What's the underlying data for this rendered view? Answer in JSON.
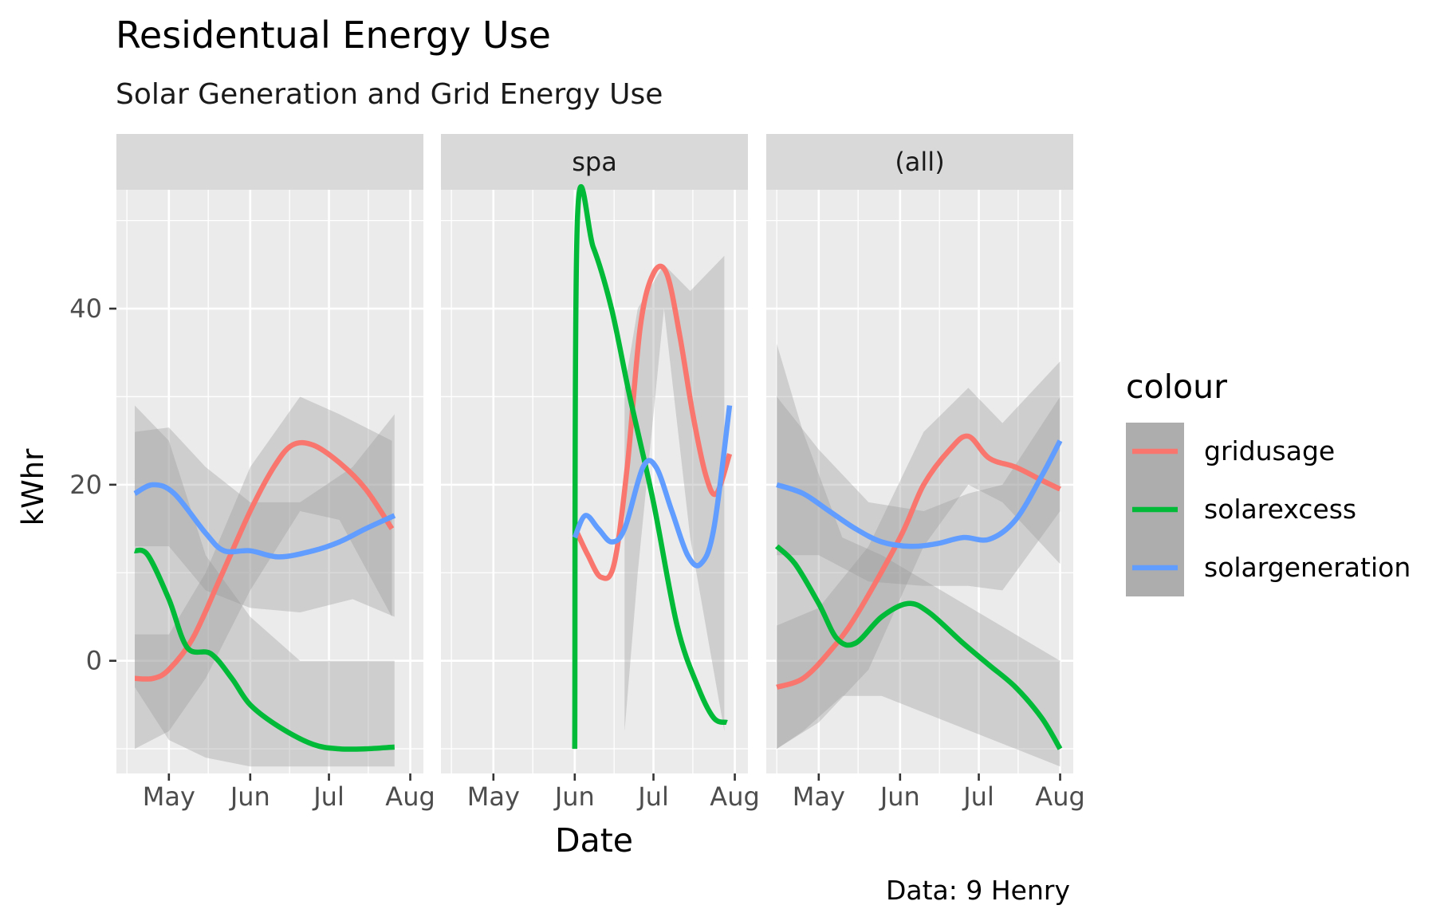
{
  "chart_data": {
    "type": "line",
    "title": "Residentual Energy Use",
    "subtitle": "Solar Generation and Grid Energy Use",
    "xlabel": "Date",
    "ylabel": "kWhr",
    "caption": "Data: 9 Henry",
    "x_ticks": [
      "May",
      "Jun",
      "Jul",
      "Aug"
    ],
    "y_ticks": [
      0,
      20,
      40
    ],
    "ylim": [
      -12.8,
      53.5
    ],
    "legend": {
      "title": "colour",
      "position": "right",
      "entries": [
        {
          "name": "gridusage",
          "color": "#F8766D"
        },
        {
          "name": "solarexcess",
          "color": "#00BA38"
        },
        {
          "name": "solargeneration",
          "color": "#619CFF"
        }
      ]
    },
    "panels": [
      {
        "strip": "",
        "series": [
          {
            "name": "gridusage",
            "color": "#F8766D",
            "points": [
              [
                "2019-04-18",
                -2
              ],
              [
                "2019-04-25",
                -2
              ],
              [
                "2019-05-01",
                -1
              ],
              [
                "2019-05-10",
                2.5
              ],
              [
                "2019-05-20",
                9
              ],
              [
                "2019-06-01",
                17
              ],
              [
                "2019-06-10",
                22
              ],
              [
                "2019-06-17",
                24.5
              ],
              [
                "2019-06-25",
                24.5
              ],
              [
                "2019-07-05",
                22.5
              ],
              [
                "2019-07-15",
                19.5
              ],
              [
                "2019-07-25",
                15
              ]
            ],
            "band": {
              "upper": [
                [
                  "2019-04-18",
                  3
                ],
                [
                  "2019-05-01",
                  3
                ],
                [
                  "2019-05-15",
                  10
                ],
                [
                  "2019-06-01",
                  22
                ],
                [
                  "2019-06-20",
                  30
                ],
                [
                  "2019-07-05",
                  28
                ],
                [
                  "2019-07-25",
                  25
                ]
              ],
              "lower": [
                [
                  "2019-04-18",
                  -10
                ],
                [
                  "2019-05-01",
                  -8
                ],
                [
                  "2019-05-15",
                  -2
                ],
                [
                  "2019-06-01",
                  8
                ],
                [
                  "2019-06-20",
                  17
                ],
                [
                  "2019-07-05",
                  16
                ],
                [
                  "2019-07-25",
                  5
                ]
              ]
            }
          },
          {
            "name": "solarexcess",
            "color": "#00BA38",
            "points": [
              [
                "2019-04-18",
                12.5
              ],
              [
                "2019-04-23",
                12
              ],
              [
                "2019-05-01",
                7
              ],
              [
                "2019-05-08",
                1.5
              ],
              [
                "2019-05-17",
                0.8
              ],
              [
                "2019-05-25",
                -2
              ],
              [
                "2019-06-01",
                -5
              ],
              [
                "2019-06-12",
                -7.5
              ],
              [
                "2019-06-25",
                -9.5
              ],
              [
                "2019-07-05",
                -10
              ],
              [
                "2019-07-15",
                -10
              ],
              [
                "2019-07-26",
                -9.8
              ]
            ],
            "band": {
              "upper": [
                [
                  "2019-04-18",
                  29
                ],
                [
                  "2019-05-01",
                  25
                ],
                [
                  "2019-05-15",
                  12
                ],
                [
                  "2019-06-01",
                  5
                ],
                [
                  "2019-06-20",
                  0
                ],
                [
                  "2019-07-26",
                  0
                ]
              ],
              "lower": [
                [
                  "2019-04-18",
                  -3
                ],
                [
                  "2019-05-01",
                  -9
                ],
                [
                  "2019-05-15",
                  -11
                ],
                [
                  "2019-06-01",
                  -12
                ],
                [
                  "2019-06-20",
                  -12
                ],
                [
                  "2019-07-26",
                  -12
                ]
              ]
            }
          },
          {
            "name": "solargeneration",
            "color": "#619CFF",
            "points": [
              [
                "2019-04-18",
                19
              ],
              [
                "2019-04-25",
                20
              ],
              [
                "2019-05-03",
                19
              ],
              [
                "2019-05-15",
                14.5
              ],
              [
                "2019-05-22",
                12.5
              ],
              [
                "2019-06-01",
                12.5
              ],
              [
                "2019-06-12",
                11.8
              ],
              [
                "2019-06-25",
                12.5
              ],
              [
                "2019-07-05",
                13.5
              ],
              [
                "2019-07-15",
                15
              ],
              [
                "2019-07-26",
                16.5
              ]
            ],
            "band": {
              "upper": [
                [
                  "2019-04-18",
                  26
                ],
                [
                  "2019-05-01",
                  26.5
                ],
                [
                  "2019-05-15",
                  22
                ],
                [
                  "2019-06-01",
                  18
                ],
                [
                  "2019-06-20",
                  18
                ],
                [
                  "2019-07-10",
                  22
                ],
                [
                  "2019-07-26",
                  28
                ]
              ],
              "lower": [
                [
                  "2019-04-18",
                  13
                ],
                [
                  "2019-05-01",
                  13
                ],
                [
                  "2019-05-15",
                  8
                ],
                [
                  "2019-06-01",
                  6
                ],
                [
                  "2019-06-20",
                  5.5
                ],
                [
                  "2019-07-10",
                  7
                ],
                [
                  "2019-07-26",
                  5
                ]
              ]
            }
          }
        ]
      },
      {
        "strip": "spa",
        "series": [
          {
            "name": "gridusage",
            "color": "#F8766D",
            "points": [
              [
                "2019-06-02",
                14.5
              ],
              [
                "2019-06-06",
                12
              ],
              [
                "2019-06-11",
                9.5
              ],
              [
                "2019-06-16",
                11
              ],
              [
                "2019-06-21",
                22
              ],
              [
                "2019-06-26",
                38
              ],
              [
                "2019-07-01",
                44
              ],
              [
                "2019-07-06",
                44
              ],
              [
                "2019-07-11",
                37
              ],
              [
                "2019-07-16",
                28
              ],
              [
                "2019-07-21",
                21
              ],
              [
                "2019-07-25",
                19
              ],
              [
                "2019-07-30",
                23.5
              ]
            ],
            "band": {
              "upper": [
                [
                  "2019-06-20",
                  31
                ],
                [
                  "2019-06-25",
                  40
                ],
                [
                  "2019-07-05",
                  45
                ],
                [
                  "2019-07-15",
                  42
                ],
                [
                  "2019-07-28",
                  46
                ]
              ],
              "lower": [
                [
                  "2019-06-20",
                  -8
                ],
                [
                  "2019-06-25",
                  10
                ],
                [
                  "2019-07-05",
                  40
                ],
                [
                  "2019-07-15",
                  14
                ],
                [
                  "2019-07-28",
                  -8
                ]
              ]
            }
          },
          {
            "name": "solarexcess",
            "color": "#00BA38",
            "points": [
              [
                "2019-06-01",
                -10
              ],
              [
                "2019-06-02",
                50
              ],
              [
                "2019-06-08",
                47
              ],
              [
                "2019-06-15",
                40
              ],
              [
                "2019-06-22",
                30
              ],
              [
                "2019-07-01",
                18
              ],
              [
                "2019-07-10",
                4
              ],
              [
                "2019-07-18",
                -3
              ],
              [
                "2019-07-24",
                -6.5
              ],
              [
                "2019-07-29",
                -7
              ]
            ]
          },
          {
            "name": "solargeneration",
            "color": "#619CFF",
            "points": [
              [
                "2019-06-01",
                14
              ],
              [
                "2019-06-05",
                16.5
              ],
              [
                "2019-06-10",
                15
              ],
              [
                "2019-06-15",
                13.5
              ],
              [
                "2019-06-20",
                15
              ],
              [
                "2019-06-27",
                22
              ],
              [
                "2019-07-02",
                22
              ],
              [
                "2019-07-08",
                17
              ],
              [
                "2019-07-14",
                12
              ],
              [
                "2019-07-19",
                11
              ],
              [
                "2019-07-24",
                15
              ],
              [
                "2019-07-30",
                29
              ]
            ]
          }
        ]
      },
      {
        "strip": "(all)",
        "series": [
          {
            "name": "gridusage",
            "color": "#F8766D",
            "points": [
              [
                "2019-04-15",
                -3
              ],
              [
                "2019-04-25",
                -2
              ],
              [
                "2019-05-05",
                1
              ],
              [
                "2019-05-15",
                5
              ],
              [
                "2019-06-01",
                14
              ],
              [
                "2019-06-10",
                20
              ],
              [
                "2019-06-20",
                24
              ],
              [
                "2019-06-27",
                25.5
              ],
              [
                "2019-07-05",
                23
              ],
              [
                "2019-07-15",
                22
              ],
              [
                "2019-07-25",
                20.5
              ],
              [
                "2019-08-01",
                19.5
              ]
            ],
            "band": {
              "upper": [
                [
                  "2019-04-15",
                  4
                ],
                [
                  "2019-05-01",
                  6
                ],
                [
                  "2019-05-20",
                  13
                ],
                [
                  "2019-06-10",
                  26
                ],
                [
                  "2019-06-27",
                  31
                ],
                [
                  "2019-07-10",
                  27
                ],
                [
                  "2019-08-01",
                  34
                ]
              ],
              "lower": [
                [
                  "2019-04-15",
                  -10
                ],
                [
                  "2019-05-01",
                  -7
                ],
                [
                  "2019-05-20",
                  -1
                ],
                [
                  "2019-06-10",
                  13
                ],
                [
                  "2019-06-27",
                  20
                ],
                [
                  "2019-07-10",
                  18
                ],
                [
                  "2019-08-01",
                  11
                ]
              ]
            }
          },
          {
            "name": "solarexcess",
            "color": "#00BA38",
            "points": [
              [
                "2019-04-15",
                13
              ],
              [
                "2019-04-22",
                11
              ],
              [
                "2019-05-01",
                6.5
              ],
              [
                "2019-05-08",
                2.5
              ],
              [
                "2019-05-15",
                2
              ],
              [
                "2019-05-25",
                5
              ],
              [
                "2019-06-04",
                6.5
              ],
              [
                "2019-06-12",
                5.5
              ],
              [
                "2019-06-25",
                2
              ],
              [
                "2019-07-05",
                -0.5
              ],
              [
                "2019-07-15",
                -3
              ],
              [
                "2019-07-25",
                -6.5
              ],
              [
                "2019-08-01",
                -10
              ]
            ],
            "band": {
              "upper": [
                [
                  "2019-04-15",
                  36
                ],
                [
                  "2019-04-25",
                  26
                ],
                [
                  "2019-05-10",
                  14
                ],
                [
                  "2019-05-25",
                  12
                ],
                [
                  "2019-08-01",
                  0
                ]
              ],
              "lower": [
                [
                  "2019-04-15",
                  -10
                ],
                [
                  "2019-04-25",
                  -8
                ],
                [
                  "2019-05-10",
                  -4
                ],
                [
                  "2019-05-25",
                  -4
                ],
                [
                  "2019-08-01",
                  -12
                ]
              ]
            }
          },
          {
            "name": "solargeneration",
            "color": "#619CFF",
            "points": [
              [
                "2019-04-15",
                20
              ],
              [
                "2019-04-25",
                19
              ],
              [
                "2019-05-05",
                17
              ],
              [
                "2019-05-15",
                15
              ],
              [
                "2019-05-25",
                13.5
              ],
              [
                "2019-06-05",
                13
              ],
              [
                "2019-06-15",
                13.3
              ],
              [
                "2019-06-25",
                14
              ],
              [
                "2019-07-05",
                13.8
              ],
              [
                "2019-07-15",
                16
              ],
              [
                "2019-07-25",
                21
              ],
              [
                "2019-08-01",
                25
              ]
            ],
            "band": {
              "upper": [
                [
                  "2019-04-15",
                  30
                ],
                [
                  "2019-05-01",
                  24
                ],
                [
                  "2019-05-20",
                  18
                ],
                [
                  "2019-06-10",
                  17
                ],
                [
                  "2019-06-27",
                  19
                ],
                [
                  "2019-07-10",
                  20
                ],
                [
                  "2019-08-01",
                  30
                ]
              ],
              "lower": [
                [
                  "2019-04-15",
                  12
                ],
                [
                  "2019-05-01",
                  12
                ],
                [
                  "2019-05-20",
                  9
                ],
                [
                  "2019-06-10",
                  8.5
                ],
                [
                  "2019-06-27",
                  8.5
                ],
                [
                  "2019-07-10",
                  8
                ],
                [
                  "2019-08-01",
                  17
                ]
              ]
            }
          }
        ]
      }
    ]
  }
}
